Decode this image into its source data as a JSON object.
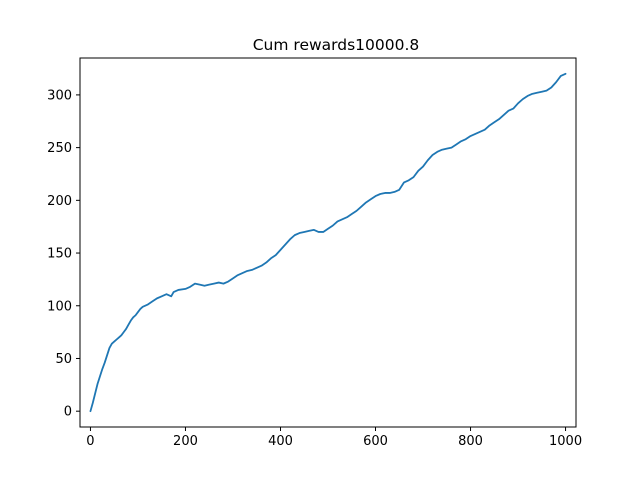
{
  "chart_data": {
    "type": "line",
    "title": "Cum rewards10000.8",
    "xlabel": "",
    "ylabel": "",
    "xlim": [
      -22,
      1022
    ],
    "ylim": [
      -15,
      335
    ],
    "xticks": [
      0,
      200,
      400,
      600,
      800,
      1000
    ],
    "yticks": [
      0,
      50,
      100,
      150,
      200,
      250,
      300
    ],
    "grid": false,
    "legend": "none",
    "series": [
      {
        "color": "#1f77b4",
        "points": [
          [
            0,
            0
          ],
          [
            5,
            8
          ],
          [
            10,
            17
          ],
          [
            15,
            26
          ],
          [
            20,
            33
          ],
          [
            25,
            40
          ],
          [
            30,
            46
          ],
          [
            35,
            53
          ],
          [
            40,
            60
          ],
          [
            45,
            64
          ],
          [
            50,
            66
          ],
          [
            55,
            68
          ],
          [
            60,
            70
          ],
          [
            65,
            72
          ],
          [
            70,
            75
          ],
          [
            75,
            78
          ],
          [
            80,
            82
          ],
          [
            85,
            86
          ],
          [
            90,
            89
          ],
          [
            95,
            91
          ],
          [
            100,
            94
          ],
          [
            105,
            97
          ],
          [
            110,
            99
          ],
          [
            120,
            101
          ],
          [
            130,
            104
          ],
          [
            140,
            107
          ],
          [
            150,
            109
          ],
          [
            160,
            111
          ],
          [
            170,
            109
          ],
          [
            175,
            113
          ],
          [
            185,
            115
          ],
          [
            200,
            116
          ],
          [
            210,
            118
          ],
          [
            220,
            121
          ],
          [
            230,
            120
          ],
          [
            240,
            119
          ],
          [
            250,
            120
          ],
          [
            260,
            121
          ],
          [
            270,
            122
          ],
          [
            280,
            121
          ],
          [
            290,
            123
          ],
          [
            300,
            126
          ],
          [
            310,
            129
          ],
          [
            320,
            131
          ],
          [
            330,
            133
          ],
          [
            340,
            134
          ],
          [
            350,
            136
          ],
          [
            360,
            138
          ],
          [
            370,
            141
          ],
          [
            380,
            145
          ],
          [
            390,
            148
          ],
          [
            400,
            153
          ],
          [
            410,
            158
          ],
          [
            420,
            163
          ],
          [
            430,
            167
          ],
          [
            440,
            169
          ],
          [
            450,
            170
          ],
          [
            460,
            171
          ],
          [
            470,
            172
          ],
          [
            480,
            170
          ],
          [
            490,
            170
          ],
          [
            500,
            173
          ],
          [
            510,
            176
          ],
          [
            520,
            180
          ],
          [
            530,
            182
          ],
          [
            540,
            184
          ],
          [
            550,
            187
          ],
          [
            560,
            190
          ],
          [
            570,
            194
          ],
          [
            580,
            198
          ],
          [
            590,
            201
          ],
          [
            600,
            204
          ],
          [
            610,
            206
          ],
          [
            620,
            207
          ],
          [
            630,
            207
          ],
          [
            640,
            208
          ],
          [
            650,
            210
          ],
          [
            660,
            217
          ],
          [
            670,
            219
          ],
          [
            680,
            222
          ],
          [
            690,
            228
          ],
          [
            700,
            232
          ],
          [
            710,
            238
          ],
          [
            720,
            243
          ],
          [
            730,
            246
          ],
          [
            740,
            248
          ],
          [
            750,
            249
          ],
          [
            760,
            250
          ],
          [
            770,
            253
          ],
          [
            780,
            256
          ],
          [
            790,
            258
          ],
          [
            800,
            261
          ],
          [
            810,
            263
          ],
          [
            820,
            265
          ],
          [
            830,
            267
          ],
          [
            840,
            271
          ],
          [
            850,
            274
          ],
          [
            860,
            277
          ],
          [
            870,
            281
          ],
          [
            880,
            285
          ],
          [
            890,
            287
          ],
          [
            900,
            292
          ],
          [
            910,
            296
          ],
          [
            920,
            299
          ],
          [
            930,
            301
          ],
          [
            940,
            302
          ],
          [
            950,
            303
          ],
          [
            960,
            304
          ],
          [
            970,
            307
          ],
          [
            980,
            312
          ],
          [
            990,
            318
          ],
          [
            1000,
            320
          ]
        ]
      }
    ]
  }
}
